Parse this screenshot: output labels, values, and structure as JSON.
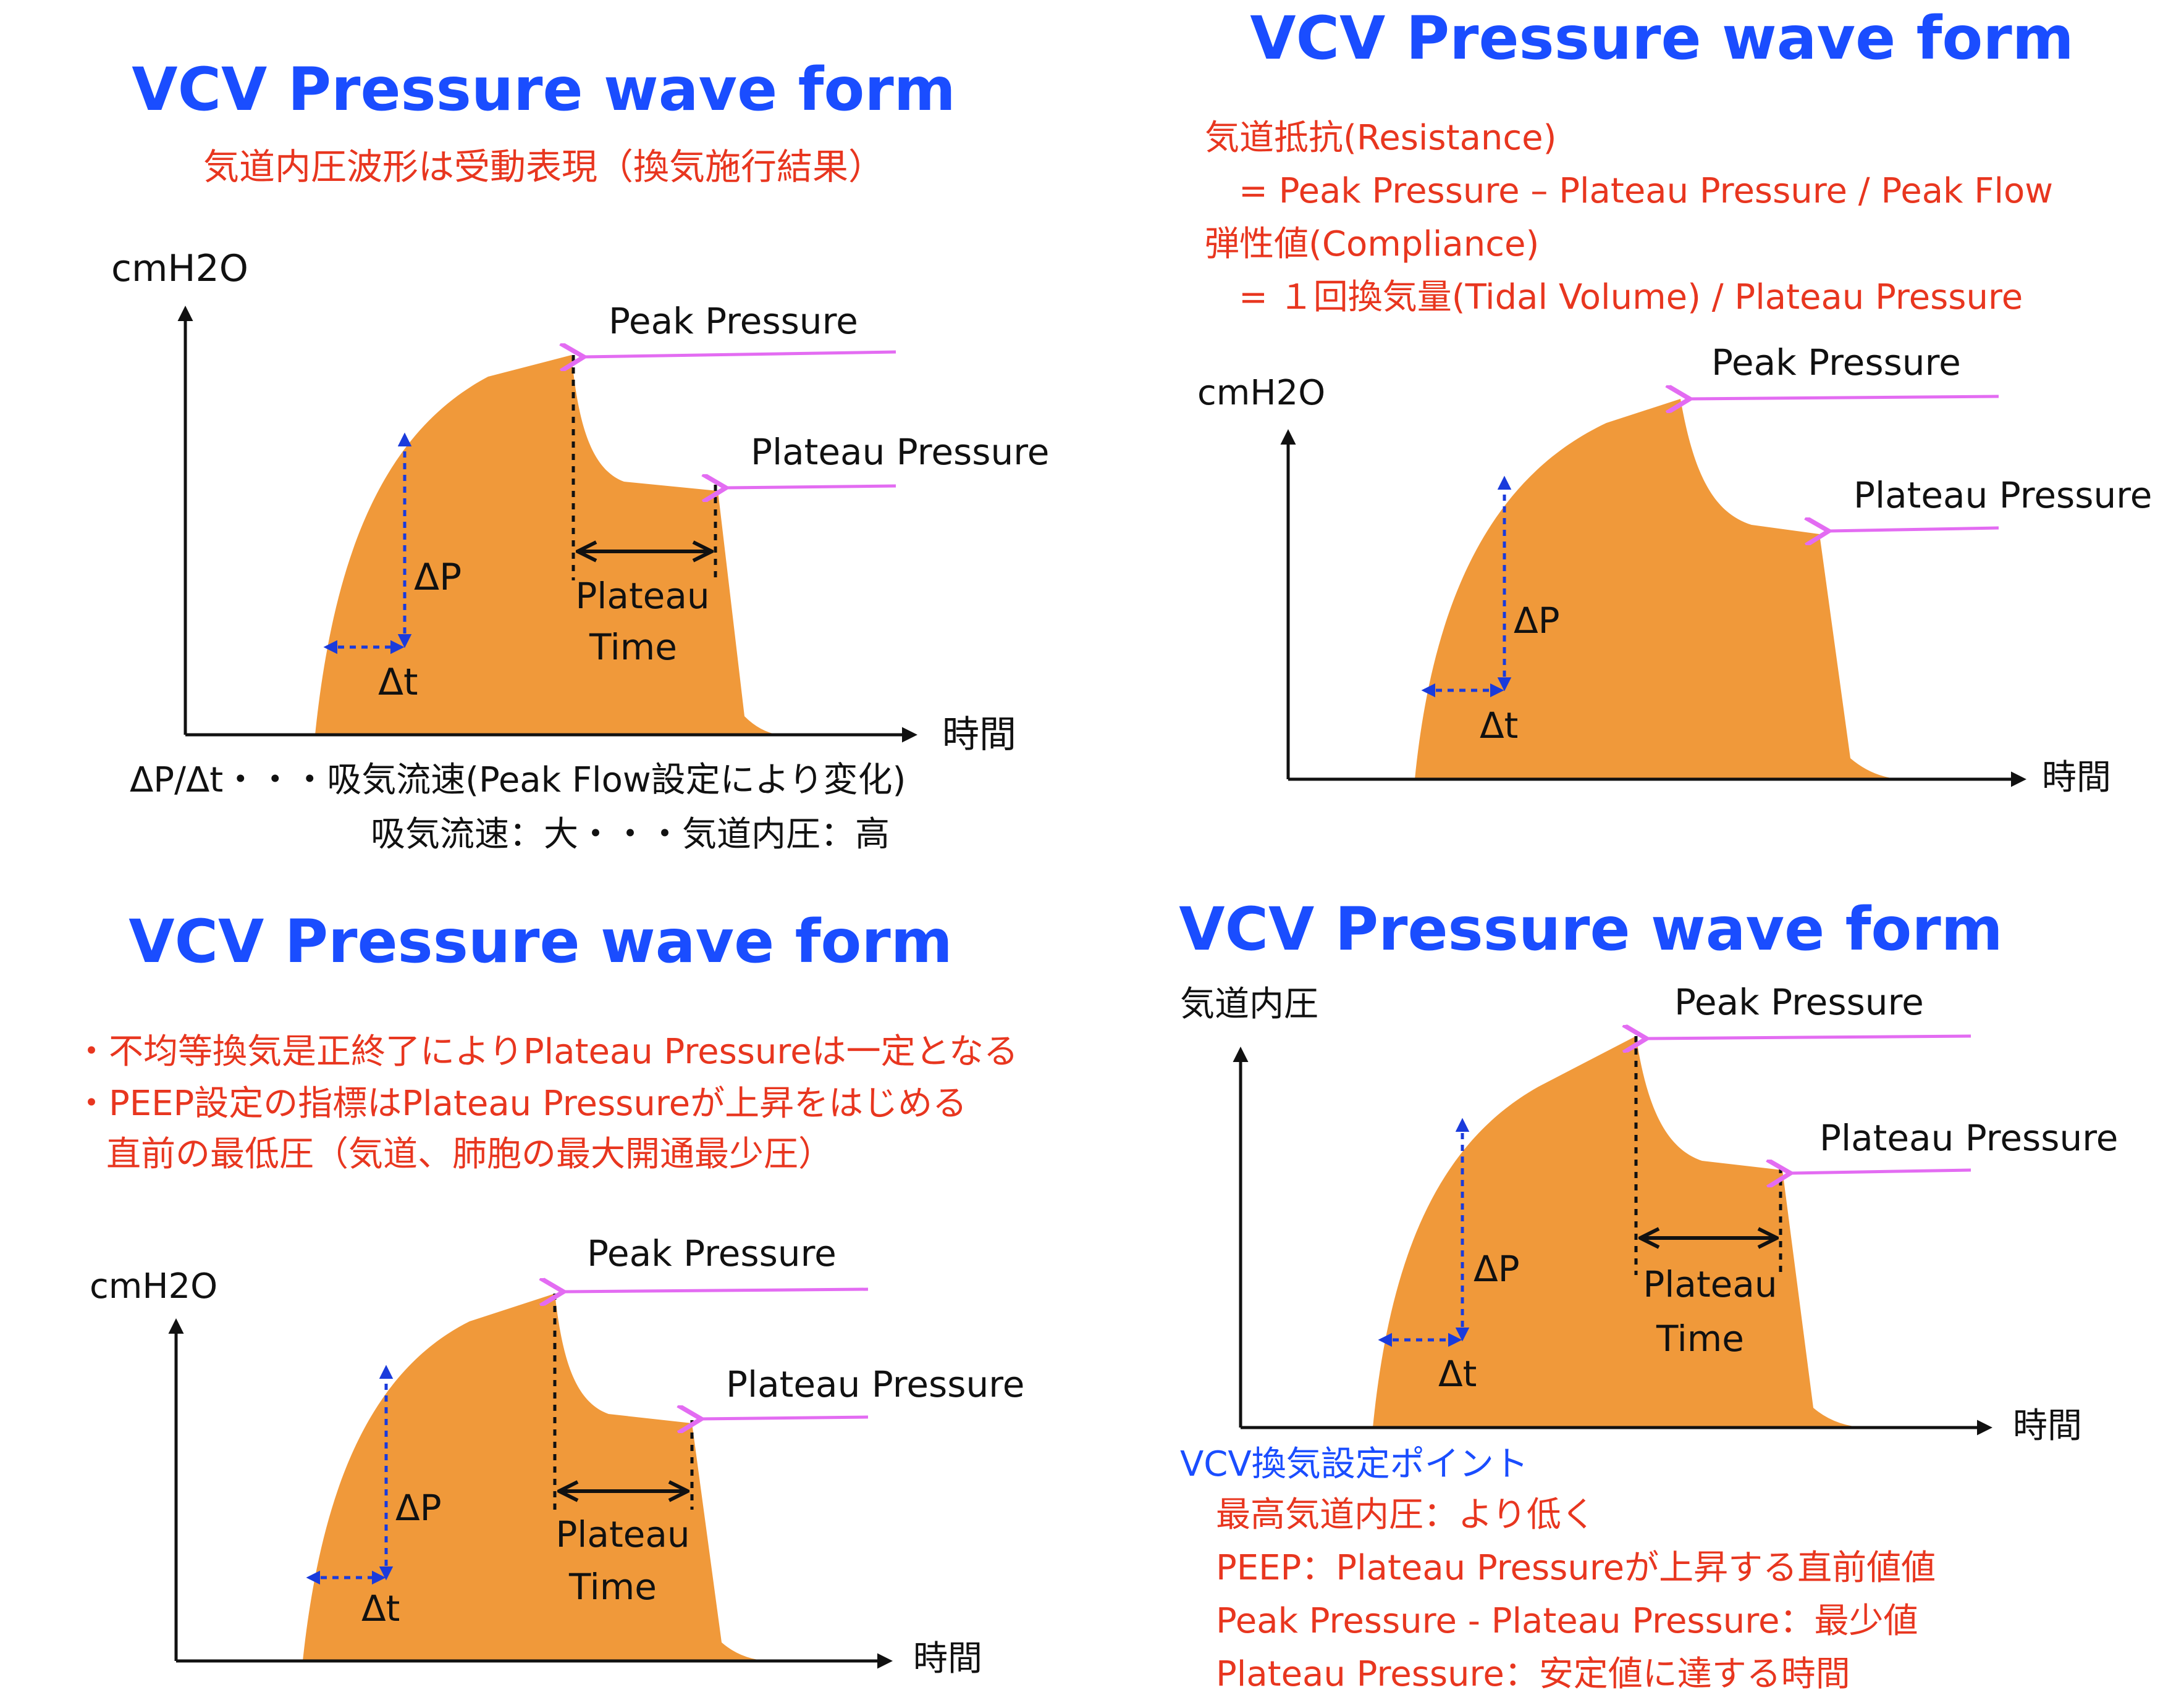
{
  "panels": {
    "tl": {
      "title": "VCV Pressure wave form",
      "subtitle": "気道内圧波形は受動表現（換気施行結果）",
      "y_label": "cmH2O",
      "x_label": "時間",
      "peak_label": "Peak Pressure",
      "plateau_label": "Plateau Pressure",
      "plateau_time_1": "Plateau",
      "plateau_time_2": "Time",
      "dp_label": "ΔP",
      "dt_label": "Δt",
      "note_1": "ΔP/Δt・・・吸気流速(Peak Flow設定により変化)",
      "note_2": "吸気流速：大・・・気道内圧：高"
    },
    "tr": {
      "title": "VCV Pressure wave form",
      "lines": [
        "気道抵抗(Resistance)",
        "= Peak Pressure – Plateau Pressure / Peak Flow",
        "弾性値(Compliance)",
        "= １回換気量(Tidal Volume) / Plateau Pressure"
      ],
      "y_label": "cmH2O",
      "x_label": "時間",
      "peak_label": "Peak Pressure",
      "plateau_label": "Plateau Pressure",
      "dp_label": "ΔP",
      "dt_label": "Δt"
    },
    "bl": {
      "title": "VCV Pressure wave form",
      "lines": [
        "・不均等換気是正終了によりPlateau Pressureは一定となる",
        "・PEEP設定の指標はPlateau Pressureが上昇をはじめる",
        "直前の最低圧（気道、肺胞の最大開通最少圧）"
      ],
      "y_label": "cmH2O",
      "x_label": "時間",
      "peak_label": "Peak Pressure",
      "plateau_label": "Plateau Pressure",
      "plateau_time_1": "Plateau",
      "plateau_time_2": "Time",
      "dp_label": "ΔP",
      "dt_label": "Δt"
    },
    "br": {
      "title": "VCV Pressure wave form",
      "y_label": "気道内圧",
      "x_label": "時間",
      "peak_label": "Peak Pressure",
      "plateau_label": "Plateau Pressure",
      "plateau_time_1": "Plateau",
      "plateau_time_2": "Time",
      "dp_label": "ΔP",
      "dt_label": "Δt",
      "settings_heading": "VCV換気設定ポイント",
      "settings": [
        "最高気道内圧：より低く",
        "PEEP：Plateau Pressureが上昇する直前値値",
        "Peak Pressure - Plateau Pressure：最少値",
        "Plateau Pressure：安定値に達する時間"
      ]
    }
  },
  "colors": {
    "title": "#1a4dff",
    "note_red": "#e8361f",
    "wave": "#f0993a",
    "pointer": "#e36cf2",
    "delta_arrow": "#1a3bdc"
  }
}
